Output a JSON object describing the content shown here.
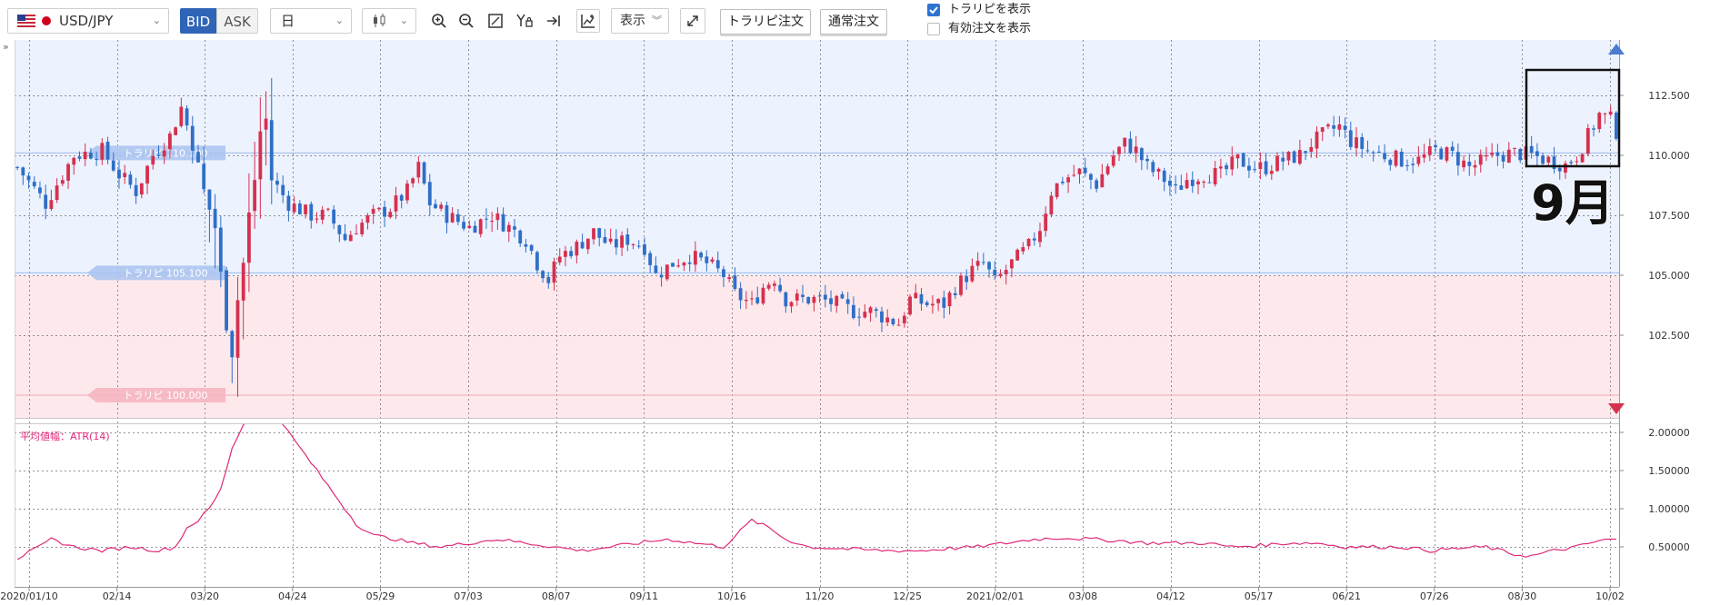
{
  "toolbar": {
    "symbol": "USD/JPY",
    "bid_label": "BID",
    "ask_label": "ASK",
    "timeframe": "日",
    "display_label": "表示",
    "trailing_order_label": "トラリピ注文",
    "normal_order_label": "通常注文",
    "show_trailing_label": "トラリピを表示",
    "show_active_orders_label": "有効注文を表示",
    "show_trailing_checked": true,
    "show_active_orders_checked": false
  },
  "colors": {
    "up": "#d6304f",
    "down": "#2f6fc6",
    "atr": "#e0287a",
    "accent": "#2f64b7"
  },
  "annotation": {
    "month_label": "9月"
  },
  "chart_data": [
    {
      "type": "candlestick",
      "title": "USD/JPY",
      "x_ticks": [
        "2020/01/10",
        "02/14",
        "03/20",
        "04/24",
        "05/29",
        "07/03",
        "08/07",
        "09/11",
        "10/16",
        "11/20",
        "12/25",
        "2021/02/01",
        "03/08",
        "04/12",
        "05/17",
        "06/21",
        "07/26",
        "08/30",
        "10/02"
      ],
      "y_ticks": [
        "112.500",
        "110.000",
        "107.500",
        "105.000",
        "102.500"
      ],
      "ylim": [
        100.0,
        113.0
      ],
      "close_path": [
        [
          0,
          109.5
        ],
        [
          5,
          108.0
        ],
        [
          10,
          110.0
        ],
        [
          15,
          110.2
        ],
        [
          18,
          109.2
        ],
        [
          21,
          108.5
        ],
        [
          24,
          110.0
        ],
        [
          27,
          110.8
        ],
        [
          29,
          112.0
        ],
        [
          31,
          110.5
        ],
        [
          33,
          108.5
        ],
        [
          35,
          107.0
        ],
        [
          36,
          105.0
        ],
        [
          37,
          103.0
        ],
        [
          38,
          101.8
        ],
        [
          39,
          104.0
        ],
        [
          40,
          105.5
        ],
        [
          41,
          107.5
        ],
        [
          42,
          109.0
        ],
        [
          43,
          111.0
        ],
        [
          44,
          111.5
        ],
        [
          45,
          109.0
        ],
        [
          48,
          108.0
        ],
        [
          52,
          107.5
        ],
        [
          55,
          107.5
        ],
        [
          58,
          106.5
        ],
        [
          60,
          107.0
        ],
        [
          63,
          107.5
        ],
        [
          66,
          107.8
        ],
        [
          69,
          108.5
        ],
        [
          71,
          109.5
        ],
        [
          73,
          108.0
        ],
        [
          76,
          107.5
        ],
        [
          80,
          107.0
        ],
        [
          84,
          107.5
        ],
        [
          87,
          107.0
        ],
        [
          90,
          106.5
        ],
        [
          92,
          105.5
        ],
        [
          94,
          104.8
        ],
        [
          96,
          105.8
        ],
        [
          99,
          106.2
        ],
        [
          102,
          106.8
        ],
        [
          105,
          106.2
        ],
        [
          108,
          106.5
        ],
        [
          111,
          106.2
        ],
        [
          113,
          105.0
        ],
        [
          116,
          105.5
        ],
        [
          119,
          105.8
        ],
        [
          122,
          105.5
        ],
        [
          125,
          105.0
        ],
        [
          127,
          104.2
        ],
        [
          130,
          103.8
        ],
        [
          132,
          104.5
        ],
        [
          134,
          104.9
        ],
        [
          136,
          104.0
        ],
        [
          139,
          104.0
        ],
        [
          142,
          104.0
        ],
        [
          145,
          103.8
        ],
        [
          148,
          103.5
        ],
        [
          151,
          103.5
        ],
        [
          154,
          103.2
        ],
        [
          156,
          103.0
        ],
        [
          158,
          104.0
        ],
        [
          161,
          103.8
        ],
        [
          164,
          103.8
        ],
        [
          166,
          104.5
        ],
        [
          169,
          105.2
        ],
        [
          171,
          105.5
        ],
        [
          173,
          104.7
        ],
        [
          176,
          105.5
        ],
        [
          179,
          106.2
        ],
        [
          181,
          107.0
        ],
        [
          183,
          108.5
        ],
        [
          185,
          109.0
        ],
        [
          188,
          109.3
        ],
        [
          191,
          108.8
        ],
        [
          194,
          110.0
        ],
        [
          196,
          110.5
        ],
        [
          198,
          110.2
        ],
        [
          200,
          109.5
        ],
        [
          203,
          109.0
        ],
        [
          205,
          108.5
        ],
        [
          207,
          109.0
        ],
        [
          210,
          109.2
        ],
        [
          213,
          109.2
        ],
        [
          216,
          109.8
        ],
        [
          219,
          109.5
        ],
        [
          221,
          109.5
        ],
        [
          224,
          109.8
        ],
        [
          227,
          110.0
        ],
        [
          229,
          110.5
        ],
        [
          232,
          111.0
        ],
        [
          234,
          111.2
        ],
        [
          236,
          110.6
        ],
        [
          239,
          110.2
        ],
        [
          242,
          110.0
        ],
        [
          245,
          109.8
        ],
        [
          248,
          109.8
        ],
        [
          251,
          110.2
        ],
        [
          254,
          110.0
        ],
        [
          257,
          109.5
        ],
        [
          260,
          109.8
        ],
        [
          262,
          110.0
        ],
        [
          265,
          110.1
        ],
        [
          268,
          110.0
        ],
        [
          271,
          109.8
        ],
        [
          274,
          109.6
        ],
        [
          276,
          110.0
        ],
        [
          278,
          110.8
        ],
        [
          280,
          111.7
        ],
        [
          282,
          111.5
        ],
        [
          283,
          111.0
        ]
      ],
      "series": [
        {
          "name": "トラリピ 110.100",
          "value": 110.1
        },
        {
          "name": "トラリピ 105.100",
          "value": 105.1
        },
        {
          "name": "トラリピ 100.000",
          "value": 100.0
        }
      ]
    },
    {
      "type": "line",
      "title": "平均値幅：ATR(14)",
      "y_ticks": [
        "2.00000",
        "1.50000",
        "1.00000",
        "0.50000"
      ],
      "ylim": [
        0.0,
        2.6
      ],
      "atr_path": [
        [
          0,
          0.35
        ],
        [
          4,
          0.5
        ],
        [
          6,
          0.6
        ],
        [
          10,
          0.5
        ],
        [
          15,
          0.45
        ],
        [
          20,
          0.5
        ],
        [
          25,
          0.45
        ],
        [
          28,
          0.5
        ],
        [
          30,
          0.75
        ],
        [
          32,
          0.85
        ],
        [
          34,
          1.0
        ],
        [
          36,
          1.25
        ],
        [
          38,
          1.8
        ],
        [
          40,
          2.1
        ],
        [
          42,
          2.25
        ],
        [
          44,
          2.3
        ],
        [
          46,
          2.25
        ],
        [
          48,
          2.0
        ],
        [
          50,
          1.8
        ],
        [
          53,
          1.5
        ],
        [
          56,
          1.2
        ],
        [
          60,
          0.8
        ],
        [
          63,
          0.65
        ],
        [
          67,
          0.6
        ],
        [
          70,
          0.55
        ],
        [
          75,
          0.5
        ],
        [
          80,
          0.55
        ],
        [
          85,
          0.6
        ],
        [
          90,
          0.55
        ],
        [
          95,
          0.5
        ],
        [
          100,
          0.45
        ],
        [
          105,
          0.5
        ],
        [
          110,
          0.55
        ],
        [
          115,
          0.6
        ],
        [
          120,
          0.55
        ],
        [
          125,
          0.5
        ],
        [
          130,
          0.85
        ],
        [
          133,
          0.75
        ],
        [
          136,
          0.6
        ],
        [
          140,
          0.5
        ],
        [
          145,
          0.48
        ],
        [
          150,
          0.46
        ],
        [
          155,
          0.45
        ],
        [
          160,
          0.45
        ],
        [
          165,
          0.48
        ],
        [
          170,
          0.5
        ],
        [
          175,
          0.55
        ],
        [
          180,
          0.6
        ],
        [
          185,
          0.62
        ],
        [
          190,
          0.6
        ],
        [
          195,
          0.58
        ],
        [
          200,
          0.55
        ],
        [
          205,
          0.55
        ],
        [
          210,
          0.55
        ],
        [
          215,
          0.5
        ],
        [
          220,
          0.52
        ],
        [
          225,
          0.55
        ],
        [
          230,
          0.55
        ],
        [
          235,
          0.5
        ],
        [
          240,
          0.5
        ],
        [
          245,
          0.5
        ],
        [
          250,
          0.45
        ],
        [
          255,
          0.48
        ],
        [
          260,
          0.5
        ],
        [
          265,
          0.4
        ],
        [
          268,
          0.38
        ],
        [
          272,
          0.45
        ],
        [
          276,
          0.5
        ],
        [
          280,
          0.58
        ],
        [
          283,
          0.6
        ]
      ]
    }
  ]
}
